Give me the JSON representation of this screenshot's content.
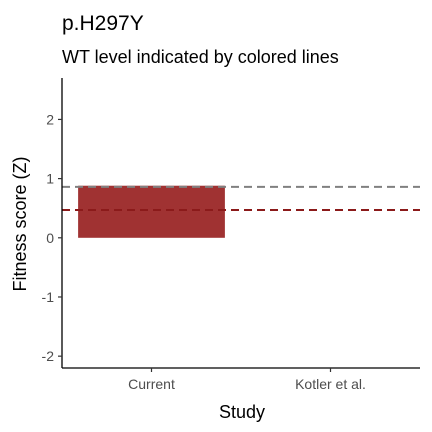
{
  "chart_data": {
    "type": "bar",
    "title": "p.H297Y",
    "subtitle": "WT level indicated by colored lines",
    "xlabel": "Study",
    "ylabel": "Fitness score (Z)",
    "categories": [
      "Current",
      "Kotler et al."
    ],
    "values": [
      0.88,
      null
    ],
    "ylim": [
      -2.2,
      2.7
    ],
    "yticks": [
      -2,
      -1,
      0,
      1,
      2
    ],
    "bar_color": "#a03232",
    "wt_lines": [
      {
        "value": 0.86,
        "color": "#808080"
      },
      {
        "value": 0.47,
        "color": "#8b1a1a"
      }
    ],
    "grid": false,
    "legend": "none"
  }
}
